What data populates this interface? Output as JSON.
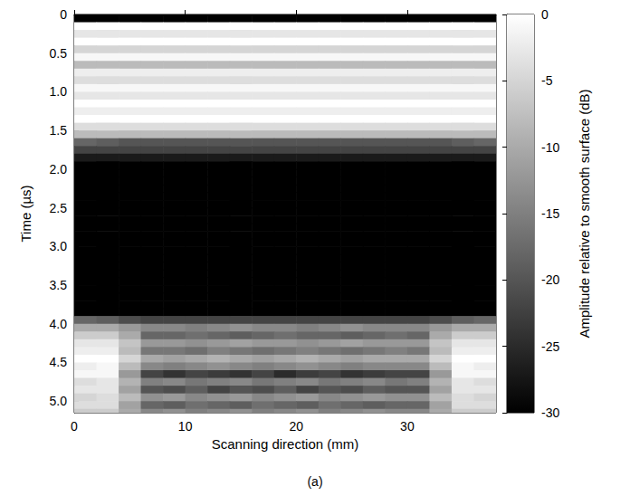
{
  "chart_data": {
    "type": "heatmap",
    "title": "(a)",
    "x_label": "Scanning direction (mm)",
    "y_label": "Time (µs)",
    "xlim": [
      0,
      38
    ],
    "xticks": [
      0,
      10,
      20,
      30
    ],
    "ylim": [
      0,
      5.15
    ],
    "yticks": [
      0,
      0.5,
      {
        "value": 1,
        "label": "1.0"
      },
      1.5,
      {
        "value": 2,
        "label": "2.0"
      },
      2.5,
      {
        "value": 3,
        "label": "3.0"
      },
      3.5,
      {
        "value": 4,
        "label": "4.0"
      },
      4.5,
      {
        "value": 5,
        "label": "5.0"
      }
    ],
    "colorbar_label": "Amplitude relative to smooth surface (dB)",
    "colorbar_lim": [
      -30,
      0
    ],
    "colorbar_ticks": [
      0,
      -5,
      -10,
      -15,
      -20,
      -25,
      -30
    ],
    "x": [
      1,
      3,
      5,
      7,
      9,
      11,
      13,
      15,
      17,
      19,
      21,
      23,
      25,
      27,
      29,
      31,
      33,
      35,
      37
    ],
    "y": [
      0.05,
      0.15,
      0.25,
      0.35,
      0.45,
      0.55,
      0.65,
      0.75,
      0.85,
      0.95,
      1.05,
      1.15,
      1.25,
      1.35,
      1.45,
      1.55,
      1.65,
      1.75,
      1.85,
      1.95,
      2.05,
      2.15,
      2.25,
      2.35,
      2.45,
      2.55,
      2.65,
      2.75,
      2.85,
      2.95,
      3.05,
      3.15,
      3.25,
      3.35,
      3.45,
      3.55,
      3.65,
      3.75,
      3.85,
      3.95,
      4.05,
      4.15,
      4.25,
      4.35,
      4.45,
      4.55,
      4.65,
      4.75,
      4.85,
      4.95,
      5.05,
      5.15
    ],
    "cells": [
      [
        -30,
        -30,
        -30,
        -30,
        -30,
        -30,
        -30,
        -30,
        -30,
        -30,
        -30,
        -30,
        -30,
        -30,
        -30,
        -30,
        -30,
        -30,
        -30
      ],
      [
        0,
        0,
        0,
        0,
        0,
        0,
        0,
        0,
        0,
        0,
        0,
        0,
        0,
        0,
        0,
        0,
        0,
        0,
        0
      ],
      [
        -3,
        -3,
        -3,
        -3,
        -3,
        -3,
        -3,
        -3,
        -3,
        -3,
        -3,
        -3,
        -3,
        -3,
        -3,
        -3,
        -3,
        -3,
        -3
      ],
      [
        0,
        0,
        0,
        0,
        0,
        0,
        0,
        0,
        0,
        0,
        0,
        0,
        0,
        0,
        0,
        0,
        0,
        0,
        0
      ],
      [
        -5,
        -5,
        -5,
        -5,
        -5,
        -5,
        -5,
        -5,
        -5,
        -5,
        -5,
        -5,
        -5,
        -5,
        -5,
        -5,
        -5,
        -5,
        -5
      ],
      [
        -1,
        -1,
        -1,
        -1,
        -1,
        -1,
        -1,
        -1,
        -1,
        -1,
        -1,
        -1,
        -1,
        -1,
        -1,
        -1,
        -1,
        -1,
        -1
      ],
      [
        -8,
        -8,
        -8,
        -8,
        -8,
        -8,
        -8,
        -8,
        -8,
        -8,
        -8,
        -8,
        -8,
        -8,
        -8,
        -8,
        -8,
        -8,
        -8
      ],
      [
        -2,
        -2,
        -2,
        -2,
        -2,
        -2,
        -2,
        -2,
        -2,
        -2,
        -2,
        -2,
        -2,
        -2,
        -2,
        -2,
        -2,
        -2,
        -2
      ],
      [
        -4,
        -4,
        -4,
        -4,
        -4,
        -4,
        -4,
        -4,
        -4,
        -4,
        -4,
        -4,
        -4,
        -4,
        -4,
        -4,
        -4,
        -4,
        -4
      ],
      [
        -1,
        -1,
        -1,
        -1,
        -1,
        -1,
        -1,
        -1,
        -1,
        -1,
        -1,
        -1,
        -1,
        -1,
        -1,
        -1,
        -1,
        -1,
        -1
      ],
      [
        -3,
        -3,
        -3,
        -3,
        -3,
        -3,
        -3,
        -3,
        -3,
        -3,
        -3,
        -3,
        -3,
        -3,
        -3,
        -3,
        -3,
        -3,
        -3
      ],
      [
        0,
        0,
        0,
        0,
        0,
        0,
        0,
        0,
        0,
        0,
        0,
        0,
        0,
        0,
        0,
        0,
        0,
        0,
        0
      ],
      [
        -2,
        -2,
        -2,
        -2,
        -2,
        -2,
        -2,
        -2,
        -2,
        -2,
        -2,
        -2,
        -2,
        -2,
        -2,
        -2,
        -2,
        -2,
        -2
      ],
      [
        0,
        0,
        0,
        0,
        0,
        0,
        0,
        0,
        0,
        0,
        0,
        0,
        0,
        0,
        0,
        0,
        0,
        0,
        0
      ],
      [
        -4,
        -4,
        -4,
        -4,
        -4,
        -4,
        -4,
        -4,
        -4,
        -4,
        -4,
        -4,
        -4,
        -4,
        -4,
        -4,
        -4,
        -4,
        -4
      ],
      [
        -8,
        -8,
        -8,
        -8,
        -8,
        -8,
        -8,
        -8,
        -8,
        -8,
        -8,
        -8,
        -8,
        -8,
        -8,
        -8,
        -8,
        -8,
        -8
      ],
      [
        -18,
        -19,
        -20,
        -20,
        -20,
        -20,
        -20,
        -20,
        -20,
        -20,
        -20,
        -20,
        -20,
        -20,
        -20,
        -20,
        -20,
        -19,
        -18
      ],
      [
        -22,
        -22,
        -22,
        -22,
        -22,
        -22,
        -22,
        -22,
        -22,
        -22,
        -22,
        -22,
        -22,
        -22,
        -22,
        -22,
        -22,
        -22,
        -22
      ],
      [
        -27,
        -27,
        -27,
        -27,
        -27,
        -27,
        -27,
        -27,
        -27,
        -27,
        -27,
        -27,
        -27,
        -27,
        -27,
        -27,
        -27,
        -27,
        -27
      ],
      [
        -30,
        -30,
        -30,
        -30,
        -30,
        -30,
        -30,
        -30,
        -30,
        -30,
        -30,
        -30,
        -30,
        -30,
        -30,
        -30,
        -30,
        -30,
        -30
      ],
      [
        -30,
        -30,
        -30,
        -30,
        -30,
        -30,
        -30,
        -30,
        -30,
        -30,
        -30,
        -30,
        -30,
        -30,
        -30,
        -30,
        -30,
        -30,
        -30
      ],
      [
        -30,
        -30,
        -30,
        -30,
        -30,
        -30,
        -30,
        -30,
        -30,
        -30,
        -30,
        -30,
        -30,
        -30,
        -30,
        -30,
        -30,
        -30,
        -30
      ],
      [
        -30,
        -30,
        -30,
        -30,
        -30,
        -30,
        -30,
        -30,
        -30,
        -30,
        -30,
        -30,
        -30,
        -30,
        -30,
        -30,
        -30,
        -30,
        -30
      ],
      [
        -30,
        -30,
        -30,
        -30,
        -30,
        -30,
        -30,
        -30,
        -30,
        -30,
        -30,
        -30,
        -30,
        -30,
        -30,
        -30,
        -30,
        -30,
        -30
      ],
      [
        -30,
        -30,
        -30,
        -30,
        -30,
        -30,
        -30,
        -30,
        -30,
        -30,
        -30,
        -30,
        -30,
        -30,
        -30,
        -30,
        -30,
        -30,
        -30
      ],
      [
        -30,
        -30,
        -30,
        -30,
        -30,
        -30,
        -30,
        -30,
        -30,
        -30,
        -30,
        -30,
        -30,
        -30,
        -30,
        -30,
        -30,
        -30,
        -30
      ],
      [
        -30,
        -30,
        -30,
        -30,
        -30,
        -30,
        -30,
        -30,
        -30,
        -30,
        -30,
        -30,
        -30,
        -30,
        -30,
        -30,
        -30,
        -30,
        -30
      ],
      [
        -30,
        -30,
        -30,
        -30,
        -30,
        -30,
        -30,
        -30,
        -30,
        -30,
        -30,
        -30,
        -30,
        -30,
        -30,
        -30,
        -30,
        -30,
        -30
      ],
      [
        -30,
        -30,
        -30,
        -30,
        -30,
        -30,
        -30,
        -30,
        -30,
        -30,
        -30,
        -30,
        -30,
        -30,
        -30,
        -30,
        -30,
        -30,
        -30
      ],
      [
        -30,
        -30,
        -30,
        -30,
        -30,
        -30,
        -30,
        -30,
        -30,
        -30,
        -30,
        -30,
        -30,
        -30,
        -30,
        -30,
        -30,
        -30,
        -30
      ],
      [
        -30,
        -30,
        -30,
        -30,
        -30,
        -30,
        -30,
        -30,
        -30,
        -30,
        -30,
        -30,
        -30,
        -30,
        -30,
        -30,
        -30,
        -30,
        -30
      ],
      [
        -30,
        -30,
        -30,
        -30,
        -30,
        -30,
        -30,
        -30,
        -30,
        -30,
        -30,
        -30,
        -30,
        -30,
        -30,
        -30,
        -30,
        -30,
        -30
      ],
      [
        -30,
        -30,
        -30,
        -30,
        -30,
        -30,
        -30,
        -30,
        -30,
        -30,
        -30,
        -30,
        -30,
        -30,
        -30,
        -30,
        -30,
        -30,
        -30
      ],
      [
        -30,
        -30,
        -30,
        -30,
        -30,
        -30,
        -30,
        -30,
        -30,
        -30,
        -30,
        -30,
        -30,
        -30,
        -30,
        -30,
        -30,
        -30,
        -30
      ],
      [
        -30,
        -30,
        -30,
        -30,
        -30,
        -30,
        -30,
        -30,
        -30,
        -30,
        -30,
        -30,
        -30,
        -30,
        -30,
        -30,
        -30,
        -30,
        -30
      ],
      [
        -30,
        -30,
        -30,
        -30,
        -30,
        -30,
        -30,
        -30,
        -30,
        -30,
        -30,
        -30,
        -30,
        -30,
        -30,
        -30,
        -30,
        -30,
        -30
      ],
      [
        -30,
        -30,
        -30,
        -30,
        -30,
        -30,
        -30,
        -30,
        -30,
        -30,
        -30,
        -30,
        -30,
        -30,
        -30,
        -30,
        -30,
        -30,
        -30
      ],
      [
        -30,
        -30,
        -30,
        -30,
        -30,
        -30,
        -30,
        -30,
        -30,
        -30,
        -30,
        -30,
        -30,
        -30,
        -30,
        -30,
        -30,
        -30,
        -30
      ],
      [
        -30,
        -30,
        -30,
        -30,
        -30,
        -30,
        -30,
        -30,
        -30,
        -30,
        -30,
        -30,
        -30,
        -30,
        -30,
        -30,
        -30,
        -30,
        -30
      ],
      [
        -18,
        -19,
        -21,
        -22,
        -22,
        -22,
        -22,
        -22,
        -22,
        -22,
        -22,
        -22,
        -22,
        -22,
        -22,
        -22,
        -21,
        -19,
        -18
      ],
      [
        -10,
        -10,
        -12,
        -14,
        -14,
        -15,
        -14,
        -13,
        -14,
        -14,
        -15,
        -14,
        -13,
        -14,
        -14,
        -14,
        -12,
        -10,
        -10
      ],
      [
        -6,
        -6,
        -10,
        -18,
        -18,
        -17,
        -18,
        -19,
        -18,
        -17,
        -18,
        -18,
        -19,
        -18,
        -17,
        -18,
        -10,
        -6,
        -6
      ],
      [
        -3,
        -3,
        -7,
        -12,
        -12,
        -13,
        -12,
        -11,
        -12,
        -12,
        -13,
        -12,
        -11,
        -12,
        -12,
        -12,
        -7,
        -3,
        -3
      ],
      [
        -2,
        -2,
        -8,
        -16,
        -16,
        -17,
        -15,
        -16,
        -17,
        -16,
        -15,
        -16,
        -17,
        -16,
        -15,
        -16,
        -8,
        -2,
        -2
      ],
      [
        0,
        0,
        -5,
        -10,
        -11,
        -10,
        -9,
        -10,
        -11,
        -10,
        -9,
        -10,
        -11,
        -10,
        -10,
        -10,
        -5,
        0,
        0
      ],
      [
        -2,
        -1,
        -8,
        -14,
        -15,
        -14,
        -13,
        -14,
        -15,
        -14,
        -13,
        -14,
        -15,
        -14,
        -14,
        -14,
        -8,
        -1,
        -2
      ],
      [
        -1,
        -1,
        -12,
        -22,
        -24,
        -22,
        -23,
        -24,
        -22,
        -25,
        -23,
        -22,
        -24,
        -23,
        -22,
        -22,
        -12,
        -1,
        -1
      ],
      [
        -4,
        -3,
        -9,
        -15,
        -14,
        -16,
        -15,
        -14,
        -16,
        -15,
        -14,
        -16,
        -15,
        -14,
        -16,
        -15,
        -9,
        -3,
        -4
      ],
      [
        -3,
        -3,
        -11,
        -20,
        -21,
        -19,
        -22,
        -20,
        -21,
        -19,
        -22,
        -20,
        -21,
        -19,
        -20,
        -20,
        -11,
        -3,
        -3
      ],
      [
        -5,
        -4,
        -8,
        -13,
        -12,
        -14,
        -13,
        -12,
        -14,
        -13,
        -12,
        -14,
        -13,
        -12,
        -13,
        -13,
        -8,
        -4,
        -5
      ],
      [
        -4,
        -4,
        -11,
        -18,
        -19,
        -17,
        -18,
        -19,
        -17,
        -18,
        -19,
        -17,
        -18,
        -19,
        -18,
        -18,
        -11,
        -4,
        -4
      ],
      [
        -6,
        -6,
        -10,
        -14,
        -13,
        -15,
        -14,
        -13,
        -15,
        -14,
        -13,
        -15,
        -14,
        -13,
        -14,
        -14,
        -10,
        -6,
        -6
      ]
    ]
  }
}
